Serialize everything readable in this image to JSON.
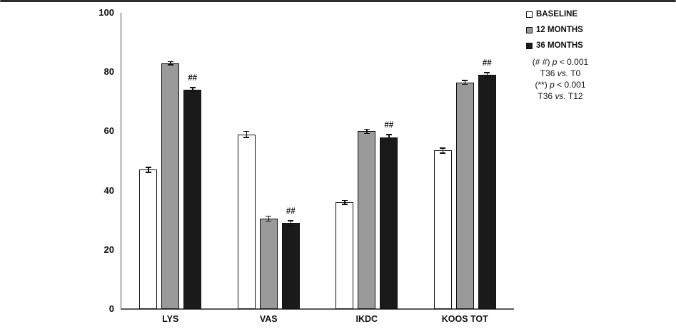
{
  "chart_data": {
    "type": "bar",
    "title": "",
    "xlabel": "",
    "ylabel": "",
    "categories": [
      "LYS",
      "VAS",
      "IKDC",
      "KOOS TOT"
    ],
    "series": [
      {
        "name": "BASELINE",
        "color": "#ffffff",
        "values": [
          47,
          59,
          36,
          53.5
        ],
        "errors": [
          1.0,
          1.2,
          0.8,
          1.0
        ]
      },
      {
        "name": "12 MONTHS",
        "color": "#9a9a9a",
        "values": [
          83,
          30.5,
          60,
          76.5
        ],
        "errors": [
          0.7,
          1.0,
          0.9,
          0.8
        ]
      },
      {
        "name": "36 MONTHS",
        "color": "#1a1a1a",
        "values": [
          74,
          29,
          58,
          79
        ],
        "errors": [
          0.9,
          1.0,
          1.1,
          1.0
        ],
        "sig_labels": [
          "##",
          "##",
          "##",
          "##"
        ]
      }
    ],
    "ylim": [
      0,
      100
    ],
    "yticks": [
      0,
      20,
      40,
      60,
      80,
      100
    ],
    "grid": false,
    "error_bars": true,
    "legend_position": "top-right",
    "notes": [
      "(# #) p < 0.001",
      "T36 vs. T0",
      "(**) p < 0.001",
      "T36 vs. T12"
    ]
  }
}
